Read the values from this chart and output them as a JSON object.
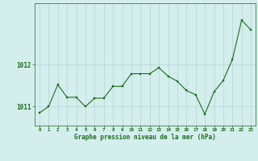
{
  "x": [
    0,
    1,
    2,
    3,
    4,
    5,
    6,
    7,
    8,
    9,
    10,
    11,
    12,
    13,
    14,
    15,
    16,
    17,
    18,
    19,
    20,
    21,
    22,
    23
  ],
  "y": [
    1010.85,
    1011.0,
    1011.52,
    1011.22,
    1011.22,
    1011.0,
    1011.2,
    1011.2,
    1011.48,
    1011.48,
    1011.78,
    1011.78,
    1011.78,
    1011.92,
    1011.72,
    1011.6,
    1011.38,
    1011.28,
    1010.82,
    1011.35,
    1011.62,
    1012.12,
    1013.05,
    1012.82
  ],
  "line_color": "#1a6e1a",
  "marker_color": "#1a6e1a",
  "bg_color": "#d4eeee",
  "grid_color": "#b8d4d4",
  "xlabel": "Graphe pression niveau de la mer (hPa)",
  "xlabel_color": "#1a6e1a",
  "ylabel_labels": [
    "1012",
    "1011"
  ],
  "ylabel_values": [
    1012,
    1011
  ],
  "ylim": [
    1010.55,
    1013.45
  ],
  "xlim": [
    -0.5,
    23.5
  ],
  "tick_color": "#1a6e1a",
  "figsize": [
    3.2,
    2.0
  ],
  "dpi": 100
}
